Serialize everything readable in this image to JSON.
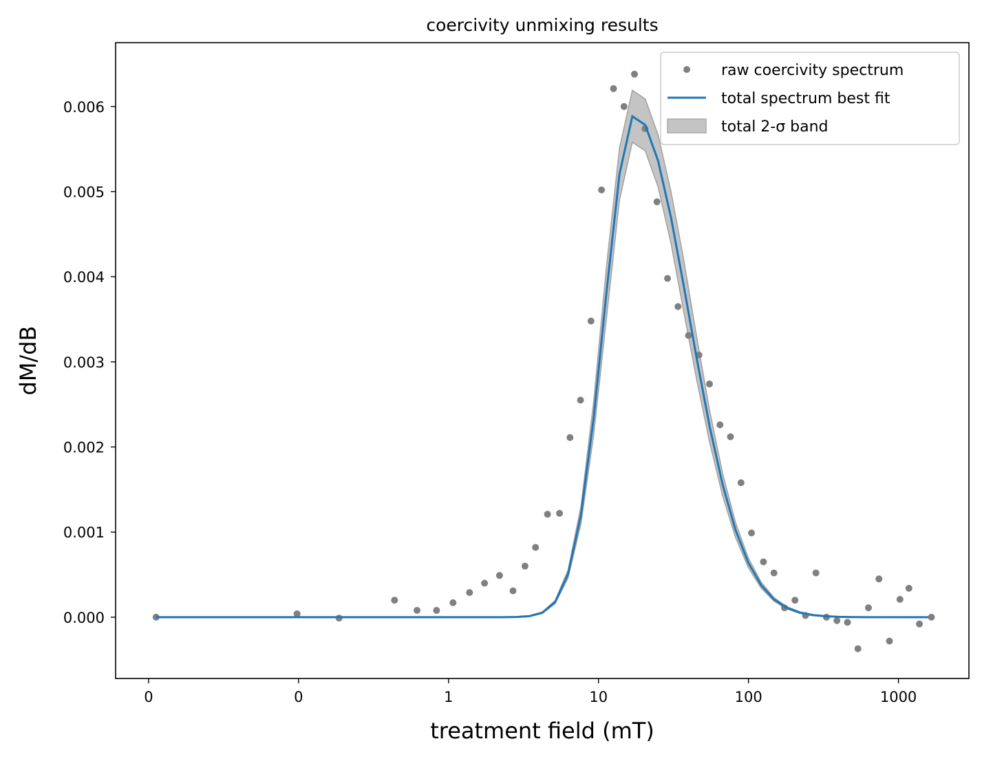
{
  "chart_data": {
    "type": "scatter",
    "title": "coercivity unmixing results",
    "xlabel": "treatment field (mT)",
    "ylabel": "dM/dB",
    "x_scale": "log10",
    "x_axis_lim": [
      -2.22,
      3.47
    ],
    "x_ticks": [
      {
        "pos": -2,
        "label": "0"
      },
      {
        "pos": -1,
        "label": "0"
      },
      {
        "pos": 0,
        "label": "1"
      },
      {
        "pos": 1,
        "label": "10"
      },
      {
        "pos": 2,
        "label": "100"
      },
      {
        "pos": 3,
        "label": "1000"
      }
    ],
    "ylim": [
      -0.00072,
      0.00675
    ],
    "y_ticks": [
      "0.000",
      "0.001",
      "0.002",
      "0.003",
      "0.004",
      "0.005",
      "0.006"
    ],
    "y_tick_values": [
      0,
      0.001,
      0.002,
      0.003,
      0.004,
      0.005,
      0.006
    ],
    "grid": false,
    "legend": {
      "position": "top-right",
      "entries": [
        "raw coercivity spectrum",
        "total spectrum best fit",
        "total 2-σ band"
      ]
    },
    "colors": {
      "points": "#808080",
      "fit": "#1f77b4",
      "band": "#b3b3b3",
      "band_edge": "#a0a0a0"
    },
    "series": [
      {
        "name": "raw coercivity spectrum",
        "type": "scatter",
        "log10_field": [
          -1.95,
          -1.01,
          -0.73,
          -0.36,
          -0.21,
          -0.08,
          0.03,
          0.14,
          0.24,
          0.34,
          0.43,
          0.51,
          0.58,
          0.66,
          0.74,
          0.81,
          0.88,
          0.95,
          1.02,
          1.1,
          1.17,
          1.24,
          1.31,
          1.39,
          1.46,
          1.53,
          1.6,
          1.67,
          1.74,
          1.81,
          1.88,
          1.95,
          2.02,
          2.1,
          2.17,
          2.24,
          2.31,
          2.38,
          2.45,
          2.52,
          2.59,
          2.66,
          2.73,
          2.8,
          2.87,
          2.94,
          3.01,
          3.07,
          3.14,
          3.22
        ],
        "values": [
          0.0,
          4e-05,
          -1e-05,
          0.0002,
          8e-05,
          8e-05,
          0.00017,
          0.00029,
          0.0004,
          0.00049,
          0.00031,
          0.0006,
          0.00082,
          0.00121,
          0.00122,
          0.00211,
          0.00255,
          0.00348,
          0.00502,
          0.00621,
          0.006,
          0.00638,
          0.00574,
          0.00488,
          0.00398,
          0.00365,
          0.00331,
          0.00308,
          0.00274,
          0.00226,
          0.00212,
          0.00158,
          0.00099,
          0.00065,
          0.00052,
          0.00011,
          0.0002,
          2e-05,
          0.00052,
          0.0,
          -4e-05,
          -6e-05,
          -0.00037,
          0.00011,
          0.00045,
          -0.00028,
          0.00021,
          0.00034,
          -8e-05,
          0.0
        ]
      },
      {
        "name": "total spectrum best fit",
        "type": "line",
        "peak_log10_field": 1.24,
        "peak_value": 0.0059,
        "sigma_low": 0.2,
        "sigma_high": 0.36,
        "log10_field_range": [
          -1.95,
          3.2
        ]
      },
      {
        "name": "total 2-σ band",
        "type": "area",
        "half_width_at_peak": 0.0003
      }
    ]
  }
}
